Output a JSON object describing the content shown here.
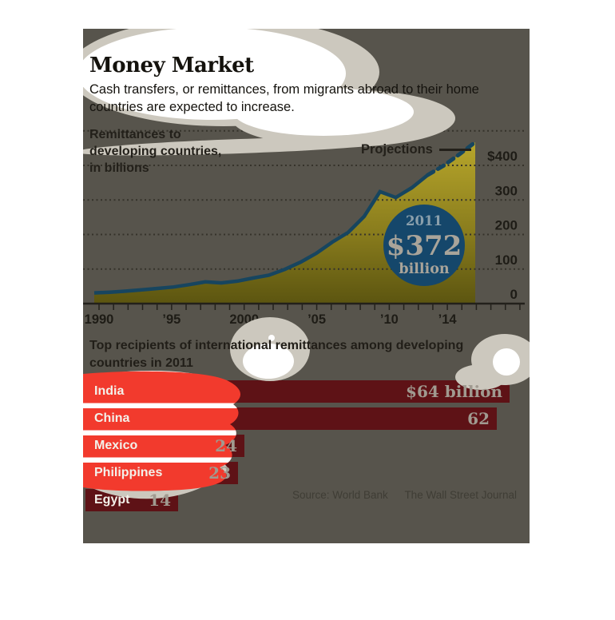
{
  "page": {
    "background": "#ffffff"
  },
  "card": {
    "background": "#57544c"
  },
  "header": {
    "title": "Money Market",
    "subtitle_lines": [
      "Cash transfers, or remittances, from migrants abroad to their home",
      "countries are expected to increase."
    ]
  },
  "line_chart": {
    "label_lines": [
      "Remittances to",
      "developing countries,",
      "in billions"
    ],
    "projections_label": "Projections",
    "callout": {
      "year": "2011",
      "value": "$372",
      "unit": "billion"
    },
    "colors": {
      "line": "#17455f",
      "area_top": "#b7a62b",
      "area_bottom": "#5c5510",
      "circle": "#15476b",
      "grid": "#35322a",
      "axis": "#23211b",
      "callout_year_text": "#8ba0ac",
      "callout_value_text": "#a9a49a"
    }
  },
  "bar_chart": {
    "heading_lines": [
      "Top recipients of international remittances among developing",
      "countries in 2011"
    ],
    "bar_color": "#5e1216",
    "label_color": "#f3f1ea",
    "value_color": "#a09a90"
  },
  "source": {
    "source_label": "Source: World Bank",
    "journal_label": "The Wall Street Journal"
  },
  "chart_data": [
    {
      "type": "area",
      "title": "Remittances to developing countries, in billions",
      "x": [
        1990,
        1991,
        1992,
        1993,
        1994,
        1995,
        1996,
        1997,
        1998,
        1999,
        2000,
        2001,
        2002,
        2003,
        2004,
        2005,
        2006,
        2007,
        2008,
        2009,
        2010,
        2011,
        2012,
        2013,
        2014
      ],
      "series": [
        {
          "name": "Remittances to developing countries ($B)",
          "values": [
            31,
            33,
            36,
            40,
            44,
            48,
            55,
            63,
            60,
            65,
            74,
            82,
            99,
            120,
            146,
            178,
            206,
            252,
            324,
            307,
            335,
            372,
            399,
            432,
            467
          ]
        }
      ],
      "solid_until_year": 2011,
      "projection_years": [
        2012,
        2013,
        2014
      ],
      "annotation": "2011: $372 billion",
      "ylim": [
        0,
        500
      ],
      "grid_values": [
        100,
        200,
        300,
        400,
        500
      ],
      "y_tick_labels": [
        {
          "value": 400,
          "text": "$400"
        },
        {
          "value": 300,
          "text": "300"
        },
        {
          "value": 200,
          "text": "200"
        },
        {
          "value": 100,
          "text": "100"
        },
        {
          "value": 0,
          "text": "0"
        }
      ],
      "x_tick_labels": [
        {
          "year": 1990,
          "text": "1990"
        },
        {
          "year": 1995,
          "text": "’95"
        },
        {
          "year": 2000,
          "text": "2000"
        },
        {
          "year": 2005,
          "text": "’05"
        },
        {
          "year": 2010,
          "text": "’10"
        },
        {
          "year": 2014,
          "text": "’14"
        }
      ],
      "legend": "none",
      "grid": "dotted horizontal"
    },
    {
      "type": "bar",
      "title": "Top recipients of international remittances among developing countries in 2011",
      "categories": [
        "India",
        "China",
        "Mexico",
        "Philippines",
        "Egypt"
      ],
      "values": [
        64,
        62,
        24,
        23,
        14
      ],
      "value_labels": [
        "$64 billion",
        "62",
        "24",
        "23",
        "14"
      ],
      "unit": "billions USD",
      "orientation": "horizontal"
    }
  ]
}
